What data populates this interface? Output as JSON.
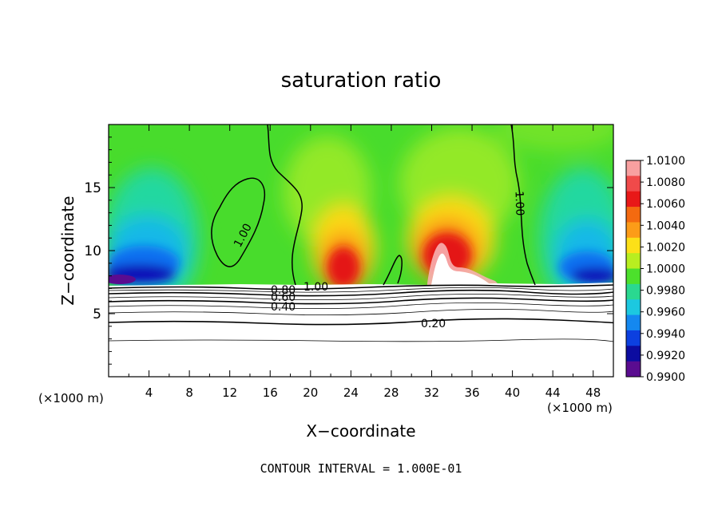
{
  "chart_data": {
    "type": "heatmap",
    "title": "saturation ratio",
    "xlabel": "X−coordinate",
    "ylabel": "Z−coordinate",
    "x_unit_label": "(×1000 m)",
    "x_unit_label_right": "(×1000 m)",
    "xlim": [
      0,
      50
    ],
    "ylim": [
      0,
      20
    ],
    "xticks": [
      "4",
      "8",
      "12",
      "16",
      "20",
      "24",
      "28",
      "32",
      "36",
      "40",
      "44",
      "48"
    ],
    "yticks": [
      "5",
      "10",
      "15"
    ],
    "colorbar": {
      "min": 0.99,
      "max": 1.01,
      "labels": [
        "1.0100",
        "1.0080",
        "1.0060",
        "1.0040",
        "1.0020",
        "1.0000",
        "0.9980",
        "0.9960",
        "0.9940",
        "0.9920",
        "0.9900"
      ],
      "colors": [
        "#f8a0a0",
        "#f04a4a",
        "#e81818",
        "#f46a10",
        "#fc9c18",
        "#fce018",
        "#b8ee20",
        "#4ce02c",
        "#2ad890",
        "#1cc8e0",
        "#1488f0",
        "#0c40e0",
        "#0c0ca0",
        "#5a0c90"
      ]
    },
    "contour_labels": [
      "1.00",
      "1.00",
      "1.00",
      "0.80",
      "0.60",
      "0.40",
      "0.20"
    ],
    "contour_interval_note": "CONTOUR INTERVAL = 1.000E-01"
  }
}
